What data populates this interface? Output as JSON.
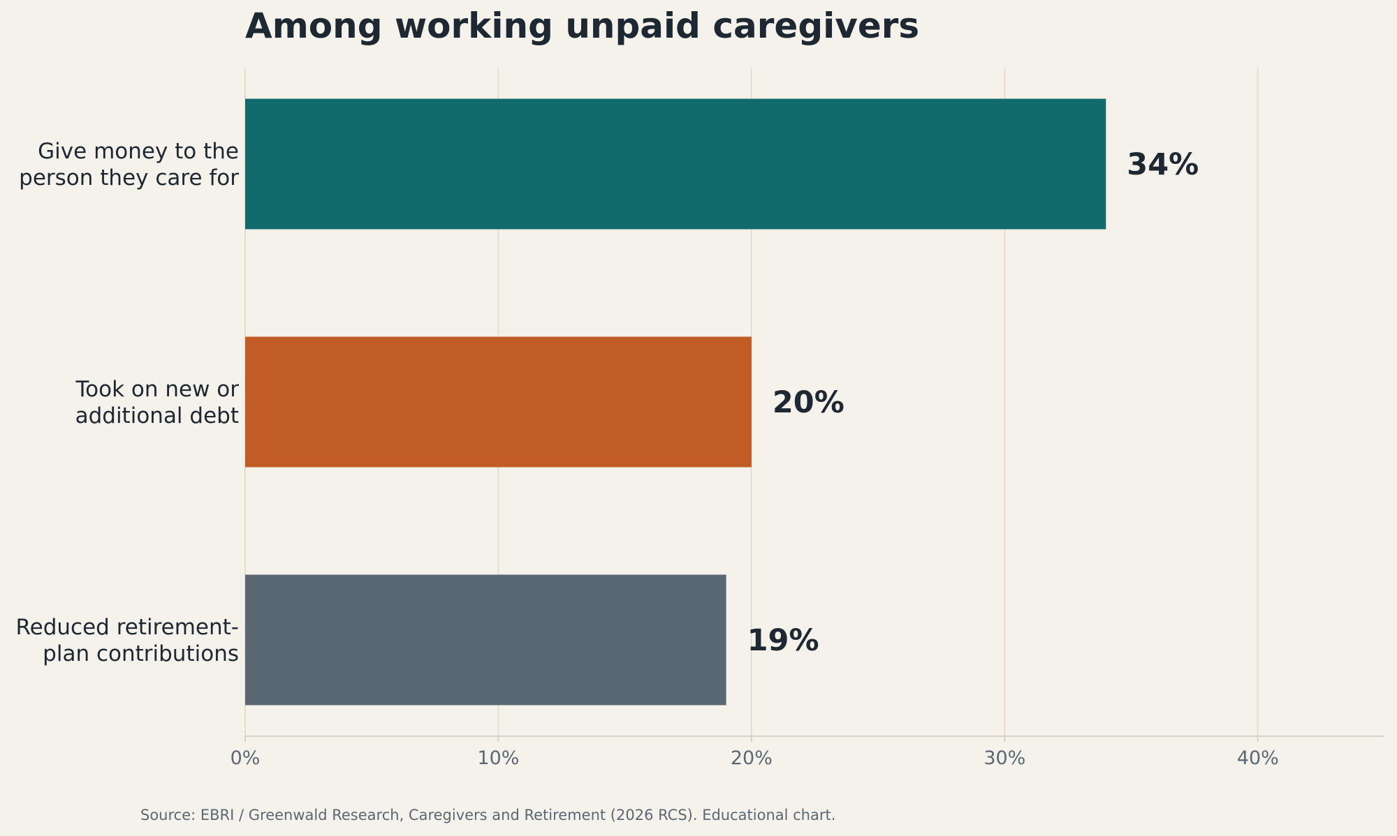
{
  "chart_data": {
    "type": "bar",
    "orientation": "horizontal",
    "title": "Among working unpaid caregivers",
    "categories": [
      [
        "Give money to the",
        "person they care for"
      ],
      [
        "Took on new or",
        "additional debt"
      ],
      [
        "Reduced retirement-",
        "plan contributions"
      ]
    ],
    "values": [
      34,
      20,
      19
    ],
    "value_labels": [
      "34%",
      "20%",
      "19%"
    ],
    "colors": [
      "#116a6b",
      "#c25c26",
      "#5a6873"
    ],
    "x_ticks": [
      0,
      10,
      20,
      30,
      40
    ],
    "x_tick_labels": [
      "0%",
      "10%",
      "20%",
      "30%",
      "40%"
    ],
    "xlim": [
      0,
      45
    ],
    "xlabel": "",
    "ylabel": "",
    "grid": "vertical",
    "legend": "none"
  },
  "source": "Source: EBRI / Greenwald Research, Caregivers and Retirement (2026 RCS). Educational chart."
}
